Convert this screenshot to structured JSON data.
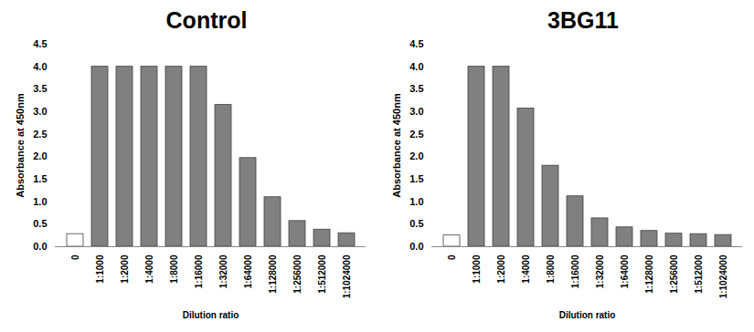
{
  "chart_data": [
    {
      "type": "bar",
      "title": "Control",
      "x_label": "Dilution ratio",
      "y_label": "Absorbance at 450nm",
      "categories": [
        "0",
        "1:1000",
        "1:2000",
        "1:4000",
        "1:8000",
        "1:16000",
        "1:32000",
        "1:64000",
        "1:128000",
        "1:256000",
        "1:512000",
        "1:1024000"
      ],
      "values": [
        0.28,
        4.0,
        4.0,
        4.0,
        4.0,
        4.0,
        3.15,
        1.97,
        1.1,
        0.57,
        0.38,
        0.3
      ],
      "colors": [
        "#ffffff",
        "#808080",
        "#808080",
        "#808080",
        "#808080",
        "#808080",
        "#808080",
        "#808080",
        "#808080",
        "#808080",
        "#808080",
        "#808080"
      ],
      "ylim": [
        0,
        4.5
      ],
      "yticks": [
        {
          "value": 0,
          "label": "0.0"
        },
        {
          "value": 0.5,
          "label": "0.5"
        },
        {
          "value": 1,
          "label": "1.0"
        },
        {
          "value": 1.5,
          "label": "1.5"
        },
        {
          "value": 2,
          "label": "2.0"
        },
        {
          "value": 2.5,
          "label": "2.5"
        },
        {
          "value": 3,
          "label": "3.0"
        },
        {
          "value": 3.5,
          "label": "3.5"
        },
        {
          "value": 4,
          "label": "4.0"
        },
        {
          "value": 4.5,
          "label": "4.5"
        }
      ],
      "grid": false
    },
    {
      "type": "bar",
      "title": "3BG11",
      "x_label": "Dilution ratio",
      "y_label": "Absorbance at 450nm",
      "categories": [
        "0",
        "1:1000",
        "1:2000",
        "1:4000",
        "1:8000",
        "1:16000",
        "1:32000",
        "1:64000",
        "1:128000",
        "1:256000",
        "1:512000",
        "1:1024000"
      ],
      "values": [
        0.25,
        4.0,
        4.0,
        3.07,
        1.8,
        1.12,
        0.63,
        0.43,
        0.35,
        0.29,
        0.28,
        0.26
      ],
      "colors": [
        "#ffffff",
        "#808080",
        "#808080",
        "#808080",
        "#808080",
        "#808080",
        "#808080",
        "#808080",
        "#808080",
        "#808080",
        "#808080",
        "#808080"
      ],
      "ylim": [
        0,
        4.5
      ],
      "yticks": [
        {
          "value": 0,
          "label": "0.0"
        },
        {
          "value": 0.5,
          "label": "0.5"
        },
        {
          "value": 1,
          "label": "1.0"
        },
        {
          "value": 1.5,
          "label": "1.5"
        },
        {
          "value": 2,
          "label": "2.0"
        },
        {
          "value": 2.5,
          "label": "2.5"
        },
        {
          "value": 3,
          "label": "3.0"
        },
        {
          "value": 3.5,
          "label": "3.5"
        },
        {
          "value": 4,
          "label": "4.0"
        },
        {
          "value": 4.5,
          "label": "4.5"
        }
      ],
      "grid": false
    }
  ]
}
